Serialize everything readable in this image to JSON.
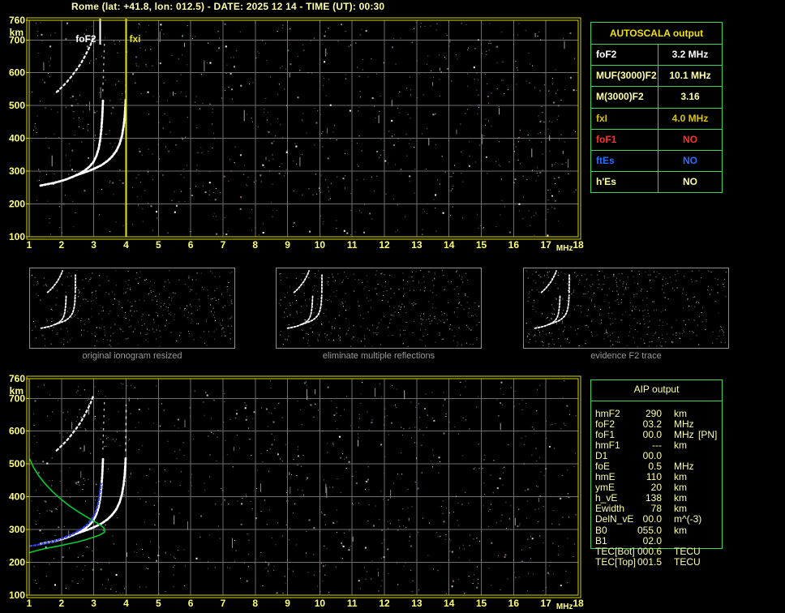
{
  "header": {
    "title": "Rome (lat: +41.8, lon: 012.5) - DATE: 2025 12 14 - TIME (UT): 00:30"
  },
  "autoscala_table": {
    "title": "AUTOSCALA output",
    "title_color": "#f2e200",
    "border_color": "#3ed455",
    "rows": [
      {
        "label": "foF2",
        "value": "3.2 MHz",
        "color": "#ffffff"
      },
      {
        "label": "MUF(3000)F2",
        "value": "10.1 MHz",
        "color": "#ffffa6"
      },
      {
        "label": "M(3000)F2",
        "value": "3.16",
        "color": "#ffffa6"
      },
      {
        "label": "fxI",
        "value": "4.0 MHz",
        "color": "#dcc400"
      },
      {
        "label": "foF1",
        "value": "NO",
        "color": "#ff3030"
      },
      {
        "label": "ftEs",
        "value": "NO",
        "color": "#2e6bff"
      },
      {
        "label": "h'Es",
        "value": "NO",
        "color": "#ffffa6"
      }
    ]
  },
  "aip_table": {
    "title": "AIP output",
    "text_color": "#ffffaa",
    "border_color": "#3ed455",
    "rows": [
      {
        "label": "hmF2",
        "value": "290",
        "unit": "km",
        "extra": ""
      },
      {
        "label": "foF2",
        "value": "03.2",
        "unit": "MHz",
        "extra": ""
      },
      {
        "label": "foF1",
        "value": "00.0",
        "unit": "MHz",
        "extra": "[PN]"
      },
      {
        "label": "hmF1",
        "value": "---",
        "unit": "km",
        "extra": ""
      },
      {
        "label": "D1",
        "value": "00.0",
        "unit": "",
        "extra": ""
      },
      {
        "label": "foE",
        "value": "0.5",
        "unit": "MHz",
        "extra": ""
      },
      {
        "label": "hmE",
        "value": "110",
        "unit": "km",
        "extra": ""
      },
      {
        "label": "ymE",
        "value": "20",
        "unit": "km",
        "extra": ""
      },
      {
        "label": "h_vE",
        "value": "138",
        "unit": "km",
        "extra": ""
      },
      {
        "label": "Ewidth",
        "value": "78",
        "unit": "km",
        "extra": ""
      },
      {
        "label": "DelN_vE",
        "value": "00.0",
        "unit": "m^(-3)",
        "extra": ""
      },
      {
        "label": "B0",
        "value": "055.0",
        "unit": "km",
        "extra": ""
      },
      {
        "label": "B1",
        "value": "02.0",
        "unit": "",
        "extra": ""
      },
      {
        "label": "TEC[Bot]",
        "value": "000.6",
        "unit": "TECU",
        "extra": ""
      },
      {
        "label": "TEC[Top]",
        "value": "001.5",
        "unit": "TECU",
        "extra": ""
      }
    ]
  },
  "thumbnails": [
    {
      "caption": "original ionogram resized",
      "noise_seed": 21,
      "noise_count": 380
    },
    {
      "caption": "eliminate multiple reflections",
      "noise_seed": 22,
      "noise_count": 380
    },
    {
      "caption": "evidence F2 trace",
      "noise_seed": 23,
      "noise_count": 430
    }
  ],
  "chart_data": [
    {
      "type": "scatter",
      "name": "scaled ionogram",
      "xlabel": "MHz",
      "ylabel": "km",
      "xlim": [
        1,
        18
      ],
      "ylim": [
        100,
        760
      ],
      "x_ticks": [
        1,
        2,
        3,
        4,
        5,
        6,
        7,
        8,
        9,
        10,
        11,
        12,
        13,
        14,
        15,
        16,
        17,
        18
      ],
      "y_ticks": [
        760,
        700,
        600,
        500,
        400,
        300,
        200,
        100
      ],
      "grid": true,
      "noise_seed": 7,
      "markers": [
        {
          "label": "foF2",
          "x": 3.2,
          "color": "#ffffff",
          "line": "short",
          "label_side": "left"
        },
        {
          "label": "fxi",
          "x": 4.0,
          "color": "#e8e800",
          "line": "full",
          "label_side": "right"
        }
      ],
      "series": [
        {
          "name": "O-trace",
          "color": "#ffffff",
          "width": 2.8,
          "dash": "2.5 2",
          "points": [
            [
              1.35,
              256
            ],
            [
              1.55,
              260
            ],
            [
              1.75,
              264
            ],
            [
              1.95,
              269
            ],
            [
              2.15,
              275
            ],
            [
              2.35,
              283
            ],
            [
              2.55,
              292
            ],
            [
              2.72,
              302
            ],
            [
              2.87,
              314
            ],
            [
              2.99,
              328
            ],
            [
              3.08,
              346
            ],
            [
              3.15,
              368
            ],
            [
              3.2,
              396
            ],
            [
              3.235,
              428
            ],
            [
              3.26,
              462
            ],
            [
              3.275,
              492
            ],
            [
              3.285,
              515
            ]
          ]
        },
        {
          "name": "X-trace",
          "color": "#ffffff",
          "width": 2.8,
          "dash": "2.5 2",
          "points": [
            [
              2.45,
              287
            ],
            [
              2.65,
              294
            ],
            [
              2.85,
              301
            ],
            [
              3.05,
              309
            ],
            [
              3.25,
              319
            ],
            [
              3.42,
              331
            ],
            [
              3.57,
              345
            ],
            [
              3.7,
              362
            ],
            [
              3.8,
              383
            ],
            [
              3.875,
              408
            ],
            [
              3.925,
              438
            ],
            [
              3.958,
              468
            ],
            [
              3.978,
              498
            ],
            [
              3.988,
              520
            ]
          ]
        },
        {
          "name": "X-trace-upper",
          "color": "#d8d8d8",
          "width": 1.6,
          "dash": "2 6",
          "points": [
            [
              3.99,
              540
            ],
            [
              3.992,
              568
            ],
            [
              3.995,
              596
            ],
            [
              3.998,
              624
            ],
            [
              4.0,
              652
            ],
            [
              4.0,
              680
            ]
          ]
        },
        {
          "name": "second-hop",
          "color": "#f0f0f0",
          "width": 2.3,
          "dash": "2.5 3.5",
          "points": [
            [
              1.85,
              541
            ],
            [
              2.0,
              555
            ],
            [
              2.15,
              570
            ],
            [
              2.3,
              588
            ],
            [
              2.45,
              607
            ],
            [
              2.6,
              628
            ],
            [
              2.75,
              655
            ],
            [
              2.9,
              685
            ],
            [
              3.0,
              712
            ]
          ]
        },
        {
          "name": "second-hop-steep",
          "color": "#bbbbbb",
          "width": 1.4,
          "dash": "1.5 6.5",
          "points": [
            [
              3.28,
              545
            ],
            [
              3.29,
              575
            ],
            [
              3.3,
              605
            ],
            [
              3.31,
              635
            ],
            [
              3.32,
              665
            ],
            [
              3.33,
              692
            ]
          ]
        }
      ]
    },
    {
      "type": "scatter",
      "name": "ionogram with restored trace and electron density profile",
      "xlabel": "MHz",
      "ylabel": "km",
      "xlim": [
        1,
        18
      ],
      "ylim": [
        100,
        760
      ],
      "x_ticks": [
        1,
        2,
        3,
        4,
        5,
        6,
        7,
        8,
        9,
        10,
        11,
        12,
        13,
        14,
        15,
        16,
        17,
        18
      ],
      "y_ticks": [
        760,
        700,
        600,
        500,
        400,
        300,
        200,
        100
      ],
      "grid": true,
      "noise_seed": 13,
      "markers": [],
      "series": [
        {
          "name": "O-trace",
          "color": "#ffffff",
          "width": 2.8,
          "dash": "2.5 2",
          "points": [
            [
              1.35,
              256
            ],
            [
              1.55,
              260
            ],
            [
              1.75,
              264
            ],
            [
              1.95,
              269
            ],
            [
              2.15,
              275
            ],
            [
              2.35,
              283
            ],
            [
              2.55,
              292
            ],
            [
              2.72,
              302
            ],
            [
              2.87,
              314
            ],
            [
              2.99,
              328
            ],
            [
              3.08,
              346
            ],
            [
              3.15,
              368
            ],
            [
              3.2,
              396
            ],
            [
              3.235,
              428
            ],
            [
              3.26,
              462
            ],
            [
              3.275,
              492
            ],
            [
              3.285,
              515
            ]
          ]
        },
        {
          "name": "X-trace",
          "color": "#ffffff",
          "width": 2.8,
          "dash": "2.5 2",
          "points": [
            [
              2.45,
              287
            ],
            [
              2.65,
              294
            ],
            [
              2.85,
              301
            ],
            [
              3.05,
              309
            ],
            [
              3.25,
              319
            ],
            [
              3.42,
              331
            ],
            [
              3.57,
              345
            ],
            [
              3.7,
              362
            ],
            [
              3.8,
              383
            ],
            [
              3.875,
              408
            ],
            [
              3.925,
              438
            ],
            [
              3.958,
              468
            ],
            [
              3.978,
              498
            ],
            [
              3.988,
              520
            ]
          ]
        },
        {
          "name": "X-trace-upper",
          "color": "#d8d8d8",
          "width": 1.6,
          "dash": "2 6",
          "points": [
            [
              3.99,
              540
            ],
            [
              3.992,
              568
            ],
            [
              3.995,
              596
            ],
            [
              3.998,
              624
            ],
            [
              4.0,
              652
            ],
            [
              4.0,
              680
            ]
          ]
        },
        {
          "name": "second-hop",
          "color": "#f0f0f0",
          "width": 2.3,
          "dash": "2.5 3.5",
          "points": [
            [
              1.85,
              541
            ],
            [
              2.0,
              555
            ],
            [
              2.15,
              570
            ],
            [
              2.3,
              588
            ],
            [
              2.45,
              607
            ],
            [
              2.6,
              628
            ],
            [
              2.75,
              655
            ],
            [
              2.9,
              685
            ],
            [
              3.0,
              712
            ]
          ]
        },
        {
          "name": "second-hop-steep",
          "color": "#bbbbbb",
          "width": 1.4,
          "dash": "1.5 6.5",
          "points": [
            [
              3.28,
              545
            ],
            [
              3.29,
              575
            ],
            [
              3.3,
              605
            ],
            [
              3.31,
              635
            ],
            [
              3.32,
              665
            ],
            [
              3.33,
              692
            ]
          ]
        },
        {
          "name": "electron-density-profile",
          "color": "#00cc33",
          "width": 1.6,
          "dash": "",
          "points": [
            [
              1.02,
              514
            ],
            [
              1.12,
              492
            ],
            [
              1.28,
              466
            ],
            [
              1.48,
              441
            ],
            [
              1.72,
              416
            ],
            [
              1.98,
              393
            ],
            [
              2.25,
              372
            ],
            [
              2.52,
              354
            ],
            [
              2.77,
              339
            ],
            [
              2.98,
              327
            ],
            [
              3.15,
              317
            ],
            [
              3.28,
              308
            ],
            [
              3.345,
              300
            ],
            [
              3.33,
              292
            ],
            [
              3.2,
              284
            ],
            [
              3.0,
              277
            ],
            [
              2.75,
              269
            ],
            [
              2.48,
              262
            ],
            [
              2.2,
              256
            ],
            [
              1.92,
              250
            ],
            [
              1.65,
              245
            ],
            [
              1.4,
              240
            ],
            [
              1.2,
              235
            ],
            [
              1.05,
              231
            ],
            [
              1.0,
              229
            ]
          ]
        },
        {
          "name": "restored-trace",
          "color": "#3344ee",
          "width": 2.4,
          "dash": "2 3",
          "points": [
            [
              1.03,
              250
            ],
            [
              1.18,
              252
            ],
            [
              1.33,
              255
            ],
            [
              1.48,
              258
            ],
            [
              1.63,
              261
            ],
            [
              1.78,
              265
            ],
            [
              1.93,
              270
            ],
            [
              2.08,
              275
            ],
            [
              2.23,
              281
            ],
            [
              2.38,
              288
            ],
            [
              2.53,
              296
            ],
            [
              2.67,
              305
            ],
            [
              2.8,
              315
            ],
            [
              2.91,
              327
            ],
            [
              3.0,
              341
            ],
            [
              3.07,
              357
            ],
            [
              3.13,
              376
            ],
            [
              3.17,
              398
            ],
            [
              3.2,
              420
            ],
            [
              3.22,
              440
            ]
          ]
        }
      ]
    }
  ],
  "colors": {
    "plot_border": "#d6d600",
    "grid": "#6e6e6e",
    "axis_text": "#ffff80",
    "title_text": "#ffffaa"
  }
}
